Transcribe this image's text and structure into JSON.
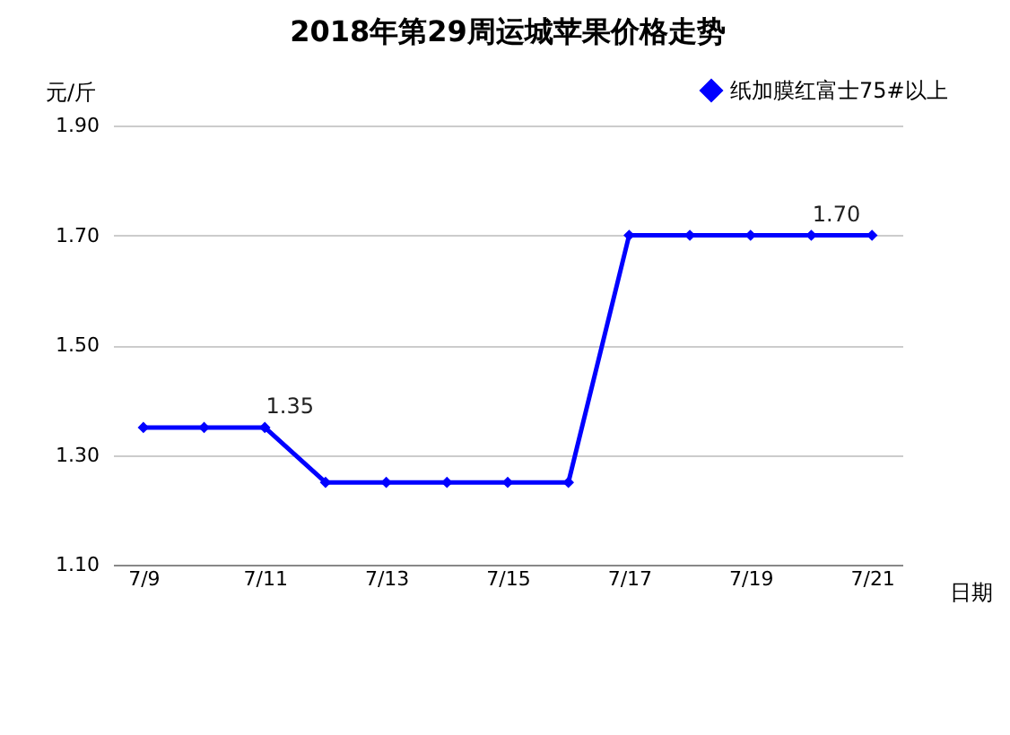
{
  "chart_data": {
    "type": "line",
    "title": "2018年第29周运城苹果价格走势",
    "xlabel": "日期",
    "ylabel": "元/斤",
    "categories": [
      "7/9",
      null,
      "7/11",
      null,
      "7/13",
      null,
      "7/15",
      null,
      "7/17",
      null,
      "7/19",
      null,
      "7/21"
    ],
    "series": [
      {
        "name": "纸加膜红富士75#以上",
        "color": "#0000ff",
        "values": [
          1.35,
          1.35,
          1.35,
          1.25,
          1.25,
          1.25,
          1.25,
          1.25,
          1.7,
          1.7,
          1.7,
          1.7,
          1.7
        ],
        "value_labels": [
          null,
          null,
          "1.35",
          null,
          null,
          null,
          null,
          null,
          null,
          null,
          null,
          "1.70",
          null
        ]
      }
    ],
    "ylim": [
      1.1,
      1.9
    ],
    "yticks": [
      {
        "value": 1.1,
        "label": "1.10"
      },
      {
        "value": 1.3,
        "label": "1.30"
      },
      {
        "value": 1.5,
        "label": "1.50"
      },
      {
        "value": 1.7,
        "label": "1.70"
      },
      {
        "value": 1.9,
        "label": "1.90"
      }
    ],
    "grid": "y",
    "legend": "top right",
    "marker": "diamond",
    "line_style": "solid"
  }
}
